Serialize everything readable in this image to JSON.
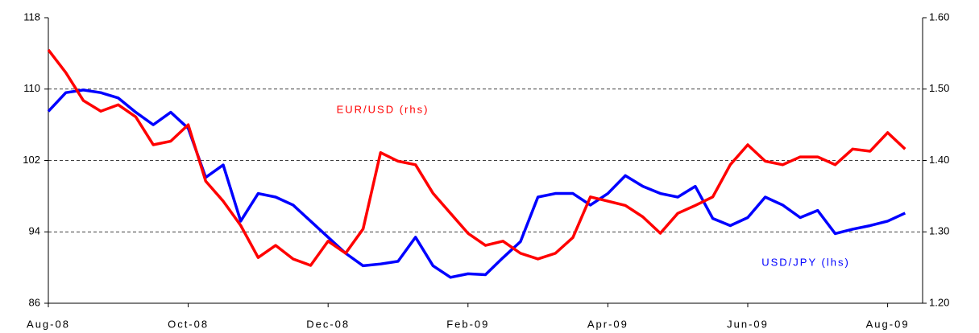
{
  "chart_data": {
    "type": "line",
    "categories": [
      "Aug-08",
      null,
      null,
      null,
      null,
      null,
      null,
      null,
      "Oct-08",
      null,
      null,
      null,
      null,
      null,
      null,
      null,
      "Dec-08",
      null,
      null,
      null,
      null,
      null,
      null,
      null,
      "Feb-09",
      null,
      null,
      null,
      null,
      null,
      null,
      null,
      "Apr-09",
      null,
      null,
      null,
      null,
      null,
      null,
      null,
      "Jun-09",
      null,
      null,
      null,
      null,
      null,
      null,
      null,
      "Aug-09",
      null
    ],
    "series": [
      {
        "name": "USD/JPY (lhs)",
        "color": "#0000ff",
        "axis": "y",
        "values": [
          107.5,
          109.6,
          109.9,
          109.6,
          109.0,
          107.4,
          106.0,
          107.4,
          105.6,
          100.1,
          101.5,
          95.2,
          98.3,
          97.9,
          97.0,
          95.2,
          93.4,
          91.6,
          90.2,
          90.4,
          90.7,
          93.4,
          90.2,
          88.9,
          89.3,
          89.2,
          91.1,
          92.9,
          97.9,
          98.3,
          98.3,
          97.0,
          98.3,
          100.3,
          99.1,
          98.3,
          97.9,
          99.1,
          95.5,
          94.7,
          95.6,
          97.9,
          97.0,
          95.6,
          96.4,
          93.8,
          94.3,
          94.7,
          95.2,
          96.1
        ]
      },
      {
        "name": "EUR/USD (rhs)",
        "color": "#ff0000",
        "axis": "y2",
        "values": [
          1.555,
          1.523,
          1.484,
          1.469,
          1.478,
          1.461,
          1.422,
          1.427,
          1.45,
          1.371,
          1.343,
          1.309,
          1.264,
          1.281,
          1.262,
          1.253,
          1.287,
          1.27,
          1.304,
          1.411,
          1.399,
          1.394,
          1.354,
          1.326,
          1.298,
          1.281,
          1.287,
          1.27,
          1.262,
          1.27,
          1.292,
          1.349,
          1.343,
          1.337,
          1.321,
          1.298,
          1.326,
          1.337,
          1.349,
          1.394,
          1.422,
          1.399,
          1.394,
          1.405,
          1.405,
          1.394,
          1.416,
          1.413,
          1.439,
          1.416
        ]
      }
    ],
    "ylim": [
      86,
      118
    ],
    "yticks": [
      86,
      94,
      102,
      110,
      118
    ],
    "y2lim": [
      1.2,
      1.6
    ],
    "y2ticks": [
      {
        "value": 1.2,
        "label": "1.20"
      },
      {
        "value": 1.3,
        "label": "1.30"
      },
      {
        "value": 1.4,
        "label": "1.40"
      },
      {
        "value": 1.5,
        "label": "1.50"
      },
      {
        "value": 1.6,
        "label": "1.60"
      }
    ],
    "grid": true
  }
}
